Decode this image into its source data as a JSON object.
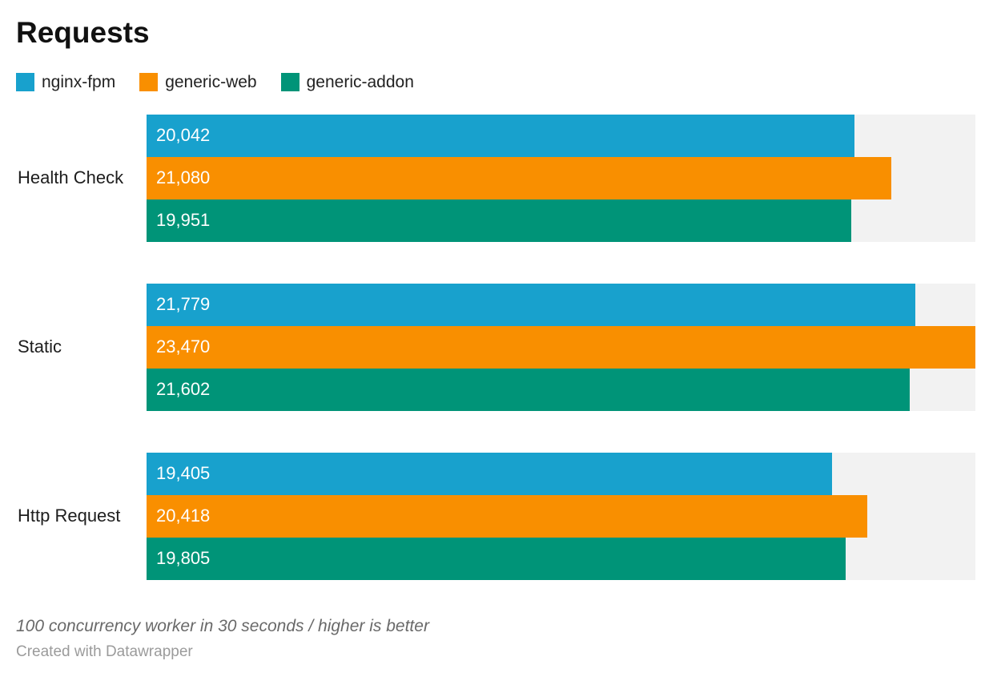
{
  "title": "Requests",
  "legend": [
    {
      "label": "nginx-fpm",
      "color": "#18a1cd"
    },
    {
      "label": "generic-web",
      "color": "#f98f00"
    },
    {
      "label": "generic-addon",
      "color": "#009478"
    }
  ],
  "chart_data": {
    "type": "bar",
    "orientation": "horizontal",
    "title": "Requests",
    "categories": [
      "Health Check",
      "Static",
      "Http Request"
    ],
    "series": [
      {
        "name": "nginx-fpm",
        "color": "#18a1cd",
        "values": [
          20042,
          21779,
          19405
        ],
        "labels": [
          "20,042",
          "21,779",
          "19,405"
        ]
      },
      {
        "name": "generic-web",
        "color": "#f98f00",
        "values": [
          21080,
          23470,
          20418
        ],
        "labels": [
          "21,080",
          "23,470",
          "20,418"
        ]
      },
      {
        "name": "generic-addon",
        "color": "#009478",
        "values": [
          19951,
          21602,
          19805
        ],
        "labels": [
          "19,951",
          "21,602",
          "19,805"
        ]
      }
    ],
    "xlim": [
      0,
      23470
    ],
    "value_labels_inside": true,
    "value_label_color": "#ffffff",
    "track_color": "#f2f2f2",
    "grid": false,
    "legend_position": "top"
  },
  "footer": {
    "note": "100 concurrency worker in 30 seconds / higher is better",
    "attribution": "Created with Datawrapper"
  }
}
